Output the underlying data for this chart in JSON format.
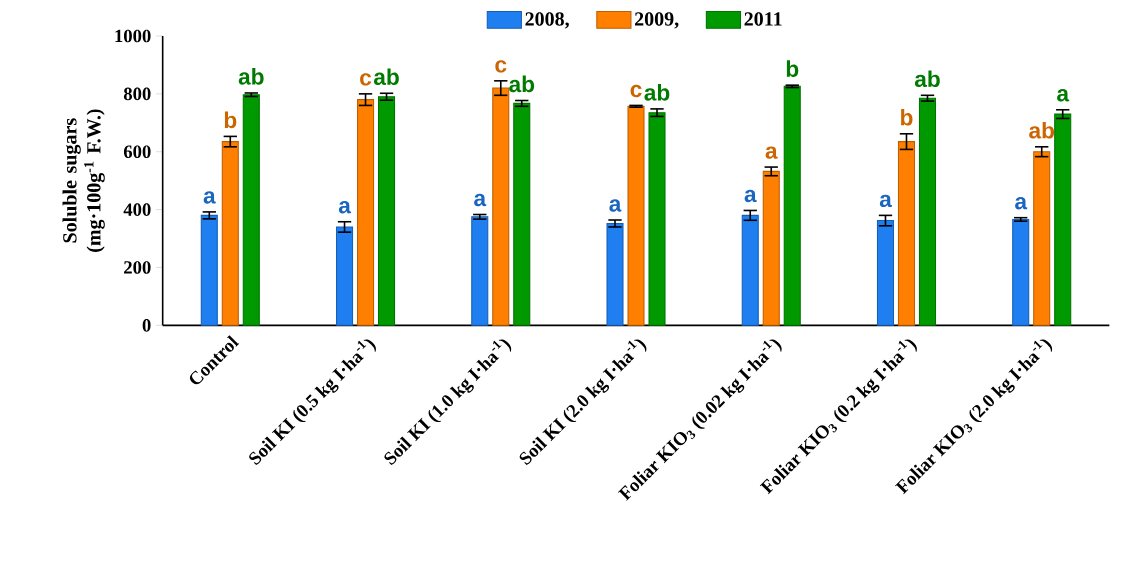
{
  "chart_data": {
    "type": "bar",
    "ylabel": "Soluble sugars (mg·100g$^{-1}$ F.W.)",
    "categories": [
      "Control",
      "Soil KI (0.5 kg I·ha$^{-1}$)",
      "Soil KI (1.0 kg I·ha$^{-1}$)",
      "Soil KI (2.0 kg I·ha$^{-1}$)",
      "Foliar KIO$_{3}$ (0.02 kg I·ha$^{-1}$)",
      "Foliar KIO$_{3}$ (0.2 kg I·ha$^{-1}$)",
      "Foliar KIO$_{3}$ (2.0 kg I·ha$^{-1}$)"
    ],
    "series": [
      {
        "name": "2008,",
        "color": "#1f7ff0",
        "values": [
          380,
          340,
          375,
          352,
          380,
          362,
          366
        ],
        "errors": [
          12,
          18,
          8,
          12,
          17,
          18,
          6
        ],
        "value_labels": [
          "a",
          "a",
          "a",
          "a",
          "a",
          "a",
          "a"
        ]
      },
      {
        "name": "2009,",
        "color": "#ff7f00",
        "values": [
          635,
          780,
          820,
          757,
          532,
          635,
          600
        ],
        "errors": [
          18,
          20,
          25,
          3,
          15,
          27,
          17
        ],
        "value_labels": [
          "b",
          "c",
          "c",
          "c",
          "a",
          "b",
          "ab"
        ]
      },
      {
        "name": "2011",
        "color": "#009900",
        "values": [
          797,
          790,
          767,
          735,
          826,
          785,
          730
        ],
        "errors": [
          6,
          12,
          10,
          13,
          4,
          10,
          15
        ],
        "value_labels": [
          "ab",
          "ab",
          "ab",
          "ab",
          "b",
          "ab",
          "a"
        ]
      }
    ],
    "ylim": [
      0,
      1000
    ],
    "yticks": [
      0,
      200,
      400,
      600,
      800,
      1000
    ],
    "grid": false,
    "legend": "top"
  }
}
